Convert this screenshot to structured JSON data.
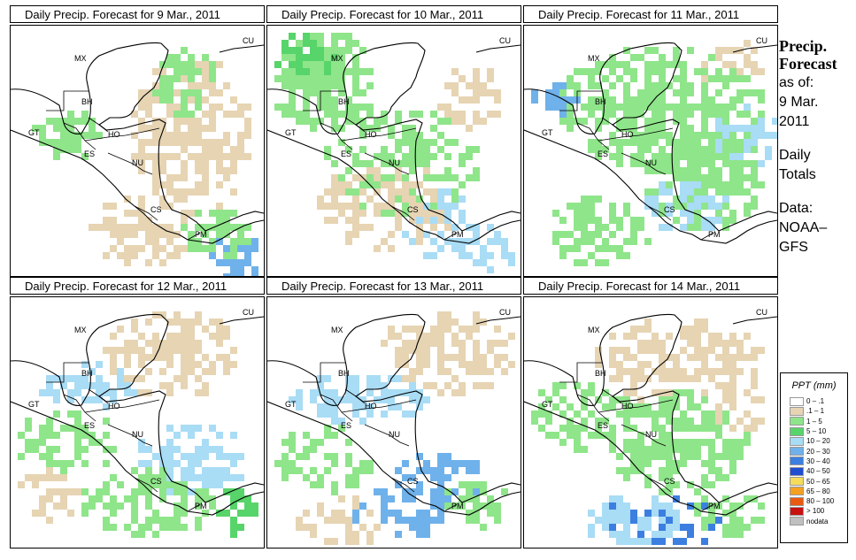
{
  "panels": [
    {
      "title": "Daily Precip. Forecast for  9 Mar., 2011"
    },
    {
      "title": "Daily Precip. Forecast for  10 Mar., 2011"
    },
    {
      "title": "Daily Precip. Forecast for  11 Mar., 2011"
    },
    {
      "title": "Daily Precip. Forecast for  12 Mar., 2011"
    },
    {
      "title": "Daily Precip. Forecast for  13 Mar., 2011"
    },
    {
      "title": "Daily Precip. Forecast for  14 Mar., 2011"
    }
  ],
  "country_labels": {
    "mx": "MX",
    "cu": "CU",
    "bh": "BH",
    "gt": "GT",
    "ho": "HO",
    "es": "ES",
    "nu": "NU",
    "cs": "CS",
    "pm": "PM"
  },
  "sidebar": {
    "title_line1": "Precip.",
    "title_line2": "Forecast",
    "as_of": "as of:",
    "date_line1": "9 Mar.",
    "date_line2": "2011",
    "totals_line1": "Daily",
    "totals_line2": "Totals",
    "data_line1": "Data:",
    "data_line2": "NOAA–",
    "data_line3": "GFS"
  },
  "legend": {
    "title": "PPT (mm)",
    "items": [
      {
        "label": "0 – .1",
        "color": "#ffffff"
      },
      {
        "label": ".1 – 1",
        "color": "#e6d4b3"
      },
      {
        "label": "1 – 5",
        "color": "#8fe58a"
      },
      {
        "label": "5 – 10",
        "color": "#57d46a"
      },
      {
        "label": "10 – 20",
        "color": "#a9dcf5"
      },
      {
        "label": "20 – 30",
        "color": "#6fb1ea"
      },
      {
        "label": "30 – 40",
        "color": "#3c7fe0"
      },
      {
        "label": "40 – 50",
        "color": "#1f4fd0"
      },
      {
        "label": "50 – 65",
        "color": "#f5dc5a"
      },
      {
        "label": "65 – 80",
        "color": "#f5a020"
      },
      {
        "label": "80 – 100",
        "color": "#ea5a10"
      },
      {
        "label": "> 100",
        "color": "#c81010"
      },
      {
        "label": "nodata",
        "color": "#c0c0c0"
      }
    ]
  }
}
